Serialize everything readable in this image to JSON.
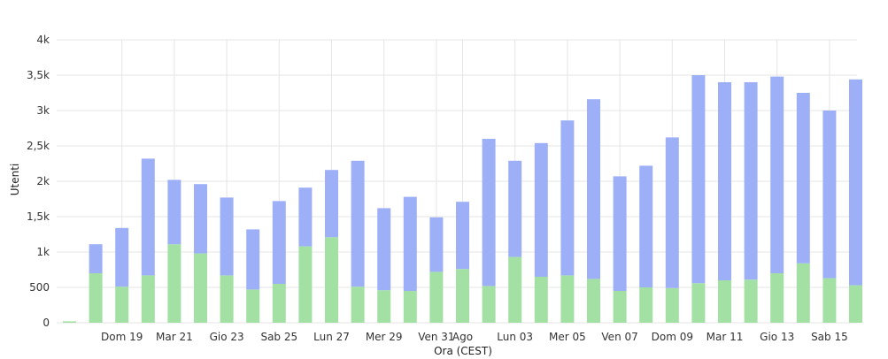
{
  "chart_data": {
    "type": "bar",
    "stacked": true,
    "xlabel": "Ora (CEST)",
    "ylabel": "Utenti",
    "ylim": [
      0,
      4000
    ],
    "yticks": [
      {
        "value": 0,
        "label": "0"
      },
      {
        "value": 500,
        "label": "500"
      },
      {
        "value": 1000,
        "label": "1k"
      },
      {
        "value": 1500,
        "label": "1,5k"
      },
      {
        "value": 2000,
        "label": "2k"
      },
      {
        "value": 2500,
        "label": "2,5k"
      },
      {
        "value": 3000,
        "label": "3k"
      },
      {
        "value": 3500,
        "label": "3,5k"
      },
      {
        "value": 4000,
        "label": "4k"
      }
    ],
    "xticks": [
      {
        "index": 2,
        "label": "Dom 19"
      },
      {
        "index": 4,
        "label": "Mar 21"
      },
      {
        "index": 6,
        "label": "Gio 23"
      },
      {
        "index": 8,
        "label": "Sab 25"
      },
      {
        "index": 10,
        "label": "Lun 27"
      },
      {
        "index": 12,
        "label": "Mer 29"
      },
      {
        "index": 14,
        "label": "Ven 31"
      },
      {
        "index": 15,
        "label": "Ago"
      },
      {
        "index": 17,
        "label": "Lun 03"
      },
      {
        "index": 19,
        "label": "Mer 05"
      },
      {
        "index": 21,
        "label": "Ven 07"
      },
      {
        "index": 23,
        "label": "Dom 09"
      },
      {
        "index": 25,
        "label": "Mar 11"
      },
      {
        "index": 27,
        "label": "Gio 13"
      },
      {
        "index": 29,
        "label": "Sab 15"
      }
    ],
    "grid": true,
    "colors": {
      "lower": "#a2e0a4",
      "upper": "#9db0f7",
      "grid": "#e5e5e5"
    },
    "series": [
      {
        "values": [
          20,
          700,
          510,
          670,
          1110,
          980,
          670,
          470,
          550,
          1080,
          1210,
          510,
          460,
          450,
          720,
          760,
          520,
          930,
          650,
          670,
          620,
          450,
          500,
          490,
          560,
          600,
          610,
          700,
          840,
          630,
          530
        ]
      },
      {
        "values": [
          0,
          410,
          830,
          1650,
          910,
          980,
          1100,
          850,
          1170,
          830,
          950,
          1780,
          1160,
          1330,
          770,
          950,
          2080,
          1360,
          1890,
          2190,
          2540,
          1620,
          1720,
          2130,
          2940,
          2800,
          2790,
          2780,
          2410,
          2370,
          2910
        ]
      }
    ]
  }
}
